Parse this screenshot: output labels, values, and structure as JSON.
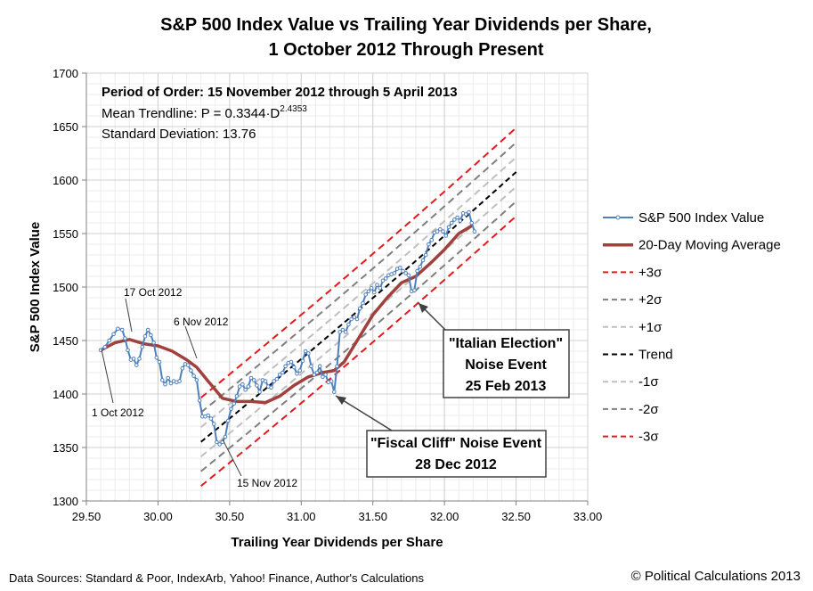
{
  "chart_data": {
    "type": "line",
    "title_line1": "S&P 500 Index Value vs Trailing Year Dividends per Share,",
    "title_line2": "1 October 2012 Through Present",
    "xlabel": "Trailing Year Dividends per Share",
    "ylabel": "S&P 500 Index Value",
    "xlim": [
      29.5,
      33.0
    ],
    "ylim": [
      1300,
      1700
    ],
    "xticks": [
      "29.50",
      "30.00",
      "30.50",
      "31.00",
      "31.50",
      "32.00",
      "32.50",
      "33.00"
    ],
    "yticks": [
      "1300",
      "1350",
      "1400",
      "1450",
      "1500",
      "1550",
      "1600",
      "1650",
      "1700"
    ],
    "grid": true,
    "info": {
      "line1": "Period of Order: 15 November 2012 through 5 April 2013",
      "line2_prefix": "Mean Trendline: P = 0.3344·D",
      "line2_exp": "2.4353",
      "line3": "Standard Deviation: 13.76"
    },
    "trend": {
      "a": 0.3344,
      "b": 2.4353,
      "sigma": 13.76,
      "x_range": [
        30.3,
        32.5
      ]
    },
    "series": [
      {
        "name": "S&P 500 Index Value",
        "color": "#4F81BD",
        "points": [
          [
            29.6,
            1441
          ],
          [
            29.63,
            1444
          ],
          [
            29.66,
            1450
          ],
          [
            29.69,
            1456
          ],
          [
            29.72,
            1461
          ],
          [
            29.75,
            1460
          ],
          [
            29.77,
            1452
          ],
          [
            29.79,
            1441
          ],
          [
            29.81,
            1432
          ],
          [
            29.83,
            1433
          ],
          [
            29.85,
            1427
          ],
          [
            29.87,
            1433
          ],
          [
            29.89,
            1444
          ],
          [
            29.91,
            1454
          ],
          [
            29.93,
            1460
          ],
          [
            29.95,
            1455
          ],
          [
            29.97,
            1448
          ],
          [
            29.99,
            1434
          ],
          [
            30.01,
            1430
          ],
          [
            30.03,
            1413
          ],
          [
            30.05,
            1409
          ],
          [
            30.07,
            1415
          ],
          [
            30.09,
            1410
          ],
          [
            30.11,
            1412
          ],
          [
            30.13,
            1411
          ],
          [
            30.15,
            1412
          ],
          [
            30.17,
            1424
          ],
          [
            30.19,
            1428
          ],
          [
            30.21,
            1427
          ],
          [
            30.23,
            1422
          ],
          [
            30.25,
            1417
          ],
          [
            30.27,
            1413
          ],
          [
            30.29,
            1394
          ],
          [
            30.31,
            1379
          ],
          [
            30.33,
            1379
          ],
          [
            30.35,
            1380
          ],
          [
            30.37,
            1377
          ],
          [
            30.39,
            1372
          ],
          [
            30.41,
            1355
          ],
          [
            30.43,
            1353
          ],
          [
            30.45,
            1355
          ],
          [
            30.47,
            1360
          ],
          [
            30.49,
            1375
          ],
          [
            30.51,
            1386
          ],
          [
            30.53,
            1391
          ],
          [
            30.55,
            1398
          ],
          [
            30.57,
            1407
          ],
          [
            30.59,
            1409
          ],
          [
            30.61,
            1404
          ],
          [
            30.63,
            1407
          ],
          [
            30.65,
            1415
          ],
          [
            30.67,
            1413
          ],
          [
            30.69,
            1408
          ],
          [
            30.71,
            1402
          ],
          [
            30.73,
            1413
          ],
          [
            30.75,
            1412
          ],
          [
            30.77,
            1407
          ],
          [
            30.79,
            1406
          ],
          [
            30.81,
            1412
          ],
          [
            30.83,
            1414
          ],
          [
            30.85,
            1418
          ],
          [
            30.87,
            1420
          ],
          [
            30.89,
            1426
          ],
          [
            30.91,
            1429
          ],
          [
            30.93,
            1430
          ],
          [
            30.95,
            1425
          ],
          [
            30.97,
            1419
          ],
          [
            30.99,
            1422
          ],
          [
            31.01,
            1431
          ],
          [
            31.03,
            1440
          ],
          [
            31.05,
            1438
          ],
          [
            31.07,
            1426
          ],
          [
            31.09,
            1418
          ],
          [
            31.11,
            1420
          ],
          [
            31.13,
            1426
          ],
          [
            31.15,
            1416
          ],
          [
            31.17,
            1418
          ],
          [
            31.19,
            1411
          ],
          [
            31.21,
            1412
          ],
          [
            31.23,
            1402
          ],
          [
            31.25,
            1426
          ],
          [
            31.27,
            1458
          ],
          [
            31.29,
            1460
          ],
          [
            31.31,
            1458
          ],
          [
            31.33,
            1465
          ],
          [
            31.35,
            1470
          ],
          [
            31.37,
            1472
          ],
          [
            31.39,
            1470
          ],
          [
            31.41,
            1480
          ],
          [
            31.43,
            1485
          ],
          [
            31.45,
            1493
          ],
          [
            31.47,
            1496
          ],
          [
            31.49,
            1499
          ],
          [
            31.51,
            1495
          ],
          [
            31.53,
            1502
          ],
          [
            31.55,
            1499
          ],
          [
            31.57,
            1506
          ],
          [
            31.59,
            1508
          ],
          [
            31.61,
            1511
          ],
          [
            31.63,
            1512
          ],
          [
            31.65,
            1513
          ],
          [
            31.67,
            1517
          ],
          [
            31.69,
            1518
          ],
          [
            31.71,
            1515
          ],
          [
            31.73,
            1513
          ],
          [
            31.75,
            1511
          ],
          [
            31.77,
            1496
          ],
          [
            31.79,
            1497
          ],
          [
            31.81,
            1515
          ],
          [
            31.83,
            1519
          ],
          [
            31.85,
            1525
          ],
          [
            31.87,
            1530
          ],
          [
            31.89,
            1540
          ],
          [
            31.91,
            1544
          ],
          [
            31.93,
            1551
          ],
          [
            31.95,
            1552
          ],
          [
            31.97,
            1554
          ],
          [
            31.99,
            1552
          ],
          [
            32.01,
            1548
          ],
          [
            32.03,
            1556
          ],
          [
            32.05,
            1560
          ],
          [
            32.07,
            1563
          ],
          [
            32.09,
            1565
          ],
          [
            32.11,
            1562
          ],
          [
            32.13,
            1569
          ],
          [
            32.15,
            1568
          ],
          [
            32.17,
            1570
          ],
          [
            32.19,
            1560
          ],
          [
            32.21,
            1552
          ]
        ]
      },
      {
        "name": "20-Day Moving Average",
        "color": "#A0413D",
        "points": [
          [
            29.6,
            1441
          ],
          [
            29.7,
            1448
          ],
          [
            29.8,
            1451
          ],
          [
            29.9,
            1447
          ],
          [
            30.0,
            1445
          ],
          [
            30.1,
            1440
          ],
          [
            30.2,
            1432
          ],
          [
            30.27,
            1425
          ],
          [
            30.35,
            1412
          ],
          [
            30.45,
            1396
          ],
          [
            30.55,
            1393
          ],
          [
            30.65,
            1393
          ],
          [
            30.75,
            1392
          ],
          [
            30.85,
            1398
          ],
          [
            30.95,
            1408
          ],
          [
            31.05,
            1416
          ],
          [
            31.15,
            1420
          ],
          [
            31.23,
            1422
          ],
          [
            31.3,
            1430
          ],
          [
            31.4,
            1452
          ],
          [
            31.5,
            1474
          ],
          [
            31.6,
            1490
          ],
          [
            31.7,
            1504
          ],
          [
            31.8,
            1510
          ],
          [
            31.9,
            1522
          ],
          [
            32.0,
            1535
          ],
          [
            32.1,
            1550
          ],
          [
            32.2,
            1558
          ]
        ]
      }
    ],
    "legend": [
      {
        "label": "S&P 500 Index Value",
        "kind": "series",
        "color": "#4F81BD"
      },
      {
        "label": "20-Day Moving Average",
        "kind": "ma",
        "color": "#A0413D"
      },
      {
        "label": "+3σ",
        "kind": "band",
        "k": 3,
        "color": "#E31A1C"
      },
      {
        "label": "+2σ",
        "kind": "band",
        "k": 2,
        "color": "#7F7F7F"
      },
      {
        "label": "+1σ",
        "kind": "band",
        "k": 1,
        "color": "#BFBFBF"
      },
      {
        "label": "Trend",
        "kind": "band",
        "k": 0,
        "color": "#000000"
      },
      {
        "label": "-1σ",
        "kind": "band",
        "k": -1,
        "color": "#BFBFBF"
      },
      {
        "label": "-2σ",
        "kind": "band",
        "k": -2,
        "color": "#7F7F7F"
      },
      {
        "label": "-3σ",
        "kind": "band",
        "k": -3,
        "color": "#E31A1C"
      }
    ],
    "annotations": [
      "1 Oct 2012",
      "17 Oct 2012",
      "6 Nov 2012",
      "15 Nov 2012"
    ],
    "callouts": {
      "italian": [
        "\"Italian Election\"",
        "Noise Event",
        "25 Feb 2013"
      ],
      "fiscal": [
        "\"Fiscal Cliff\" Noise Event",
        "28 Dec 2012"
      ]
    }
  },
  "footer": {
    "sources": "Data Sources: Standard & Poor, IndexArb, Yahoo! Finance, Author's Calculations",
    "copyright": "© Political Calculations 2013"
  }
}
